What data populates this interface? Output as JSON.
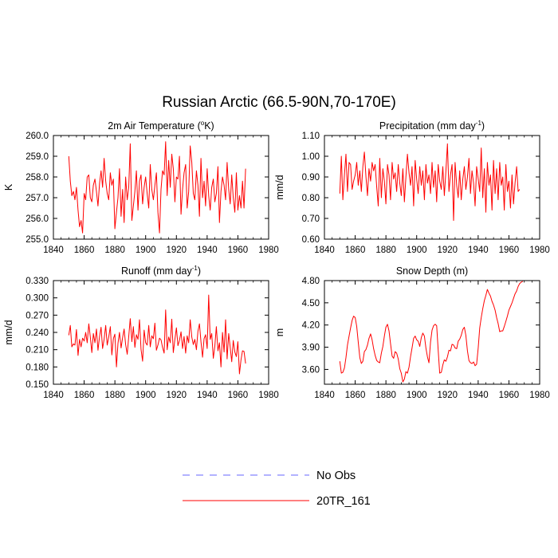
{
  "title": "Russian Arctic (66.5-90N,70-170E)",
  "legend": [
    {
      "label": "No Obs",
      "color": "#6666ff",
      "style": "dashed"
    },
    {
      "label": "20TR_161",
      "color": "#ff0000",
      "style": "solid"
    }
  ],
  "chart_data": [
    {
      "type": "line",
      "title_main": "2m Air Temperature (",
      "title_sup": "o",
      "title_end": "K)",
      "ylabel": "K",
      "xlim": [
        1840,
        1980
      ],
      "ylim": [
        255.0,
        260.0
      ],
      "xticks": [
        1840,
        1860,
        1880,
        1900,
        1920,
        1940,
        1960,
        1980
      ],
      "yticks": [
        "255.0",
        "256.0",
        "257.0",
        "258.0",
        "259.0",
        "260.0"
      ],
      "series": [
        {
          "name": "20TR_161",
          "color": "#ff0000",
          "x_start": 1850,
          "values": [
            259.0,
            257.8,
            257.1,
            257.3,
            256.9,
            257.5,
            256.4,
            255.6,
            255.9,
            255.3,
            257.2,
            256.9,
            258.0,
            258.1,
            257.0,
            256.8,
            257.6,
            257.9,
            257.3,
            256.6,
            257.7,
            258.3,
            257.5,
            258.9,
            257.8,
            257.2,
            256.9,
            258.2,
            257.6,
            257.9,
            255.5,
            256.3,
            257.0,
            258.4,
            256.1,
            257.4,
            255.8,
            258.0,
            256.9,
            257.5,
            259.6,
            255.9,
            256.6,
            257.3,
            258.3,
            256.4,
            257.8,
            258.1,
            256.7,
            257.5,
            258.0,
            257.2,
            256.5,
            258.6,
            257.4,
            256.9,
            257.6,
            258.2,
            256.3,
            255.3,
            257.4,
            258.3,
            258.1,
            259.7,
            257.1,
            258.8,
            257.5,
            259.1,
            258.4,
            256.8,
            258.0,
            257.9,
            259.0,
            256.2,
            257.4,
            258.2,
            258.6,
            256.5,
            257.3,
            259.5,
            258.7,
            257.2,
            256.9,
            258.3,
            257.6,
            256.1,
            258.9,
            257.0,
            257.8,
            256.6,
            258.4,
            257.1,
            256.4,
            257.5,
            257.9,
            256.8,
            257.2,
            258.5,
            255.8,
            257.3,
            258.0,
            257.6,
            256.9,
            258.7,
            257.4,
            256.7,
            258.1,
            257.0,
            256.3,
            258.2,
            256.4,
            257.1,
            256.5,
            257.8,
            256.5,
            258.4
          ]
        }
      ]
    },
    {
      "type": "line",
      "title_main": "Precipitation (mm day",
      "title_sup": "-1",
      "title_end": ")",
      "ylabel": "mm/d",
      "xlim": [
        1840,
        1980
      ],
      "ylim": [
        0.6,
        1.1
      ],
      "xticks": [
        1840,
        1860,
        1880,
        1900,
        1920,
        1940,
        1960,
        1980
      ],
      "yticks": [
        "0.60",
        "0.70",
        "0.80",
        "0.90",
        "1.00",
        "1.10"
      ],
      "series": [
        {
          "name": "20TR_161",
          "color": "#ff0000",
          "x_start": 1850,
          "values": [
            0.82,
            1.0,
            0.79,
            0.91,
            1.01,
            0.83,
            0.97,
            0.96,
            0.84,
            0.88,
            0.91,
            0.97,
            0.86,
            0.93,
            0.83,
            0.95,
            1.02,
            0.9,
            0.81,
            0.94,
            0.88,
            0.97,
            0.93,
            0.96,
            0.85,
            0.76,
            0.99,
            0.8,
            0.94,
            0.88,
            0.77,
            0.96,
            0.91,
            0.79,
            0.97,
            0.89,
            0.92,
            0.83,
            0.96,
            0.87,
            0.81,
            0.94,
            0.78,
            0.9,
            1.01,
            0.92,
            0.86,
            0.95,
            0.76,
            0.98,
            0.89,
            0.82,
            0.95,
            0.86,
            0.93,
            0.79,
            0.96,
            0.87,
            0.91,
            0.82,
            0.97,
            0.85,
            0.93,
            0.78,
            0.96,
            0.88,
            0.84,
            0.95,
            0.81,
            0.93,
            1.06,
            0.83,
            0.91,
            0.96,
            0.69,
            0.97,
            0.86,
            0.8,
            0.93,
            0.79,
            0.89,
            0.95,
            0.84,
            0.9,
            0.99,
            0.82,
            0.93,
            0.87,
            0.76,
            0.95,
            0.89,
            0.83,
            1.04,
            0.8,
            0.94,
            0.73,
            0.97,
            0.86,
            0.91,
            0.74,
            0.98,
            0.82,
            0.94,
            0.79,
            0.97,
            0.86,
            0.9,
            0.74,
            0.96,
            0.83,
            0.88,
            0.75,
            0.91,
            0.77,
            0.87,
            0.95,
            0.83,
            0.84
          ]
        }
      ]
    },
    {
      "type": "line",
      "title_main": "Runoff (mm day",
      "title_sup": "-1",
      "title_end": ")",
      "ylabel": "mm/d",
      "xlim": [
        1840,
        1980
      ],
      "ylim": [
        0.15,
        0.33
      ],
      "xticks": [
        1840,
        1860,
        1880,
        1900,
        1920,
        1940,
        1960,
        1980
      ],
      "yticks": [
        "0.150",
        "0.180",
        "0.210",
        "0.240",
        "0.270",
        "0.300",
        "0.330"
      ],
      "series": [
        {
          "name": "20TR_161",
          "color": "#ff0000",
          "x_start": 1850,
          "values": [
            0.235,
            0.252,
            0.215,
            0.22,
            0.218,
            0.245,
            0.2,
            0.228,
            0.215,
            0.23,
            0.225,
            0.24,
            0.222,
            0.255,
            0.232,
            0.205,
            0.238,
            0.222,
            0.246,
            0.209,
            0.233,
            0.249,
            0.212,
            0.228,
            0.252,
            0.218,
            0.232,
            0.25,
            0.201,
            0.229,
            0.237,
            0.18,
            0.221,
            0.24,
            0.213,
            0.231,
            0.246,
            0.219,
            0.202,
            0.233,
            0.264,
            0.224,
            0.25,
            0.214,
            0.236,
            0.228,
            0.262,
            0.211,
            0.19,
            0.244,
            0.222,
            0.218,
            0.252,
            0.215,
            0.234,
            0.229,
            0.256,
            0.209,
            0.218,
            0.23,
            0.227,
            0.214,
            0.204,
            0.279,
            0.21,
            0.232,
            0.222,
            0.263,
            0.205,
            0.228,
            0.248,
            0.217,
            0.226,
            0.241,
            0.212,
            0.233,
            0.204,
            0.234,
            0.222,
            0.262,
            0.232,
            0.219,
            0.228,
            0.21,
            0.242,
            0.255,
            0.224,
            0.197,
            0.229,
            0.236,
            0.212,
            0.305,
            0.228,
            0.238,
            0.195,
            0.216,
            0.25,
            0.208,
            0.222,
            0.18,
            0.24,
            0.206,
            0.262,
            0.194,
            0.238,
            0.214,
            0.189,
            0.226,
            0.206,
            0.198,
            0.224,
            0.168,
            0.192,
            0.208,
            0.207,
            0.186
          ]
        }
      ]
    },
    {
      "type": "line",
      "title_main": "Snow Depth (m)",
      "title_sup": "",
      "title_end": "",
      "ylabel": "m",
      "xlim": [
        1840,
        1980
      ],
      "ylim": [
        3.4,
        4.8
      ],
      "xticks": [
        1840,
        1860,
        1880,
        1900,
        1920,
        1940,
        1960,
        1980
      ],
      "yticks": [
        "3.60",
        "3.90",
        "4.20",
        "4.50",
        "4.80"
      ],
      "series": [
        {
          "name": "20TR_161",
          "color": "#ff0000",
          "x_start": 1850,
          "values": [
            3.71,
            3.55,
            3.56,
            3.62,
            3.76,
            3.93,
            4.05,
            4.16,
            4.26,
            4.32,
            4.3,
            4.18,
            3.97,
            3.76,
            3.68,
            3.71,
            3.84,
            3.87,
            3.93,
            4.02,
            4.08,
            4.0,
            3.88,
            3.79,
            3.72,
            3.7,
            3.69,
            3.82,
            3.91,
            4.05,
            4.17,
            4.21,
            4.12,
            3.95,
            3.78,
            3.75,
            3.84,
            3.82,
            3.74,
            3.61,
            3.55,
            3.43,
            3.47,
            3.57,
            3.55,
            3.63,
            3.77,
            3.89,
            4.02,
            4.05,
            4.0,
            3.98,
            3.91,
            4.03,
            4.09,
            4.05,
            3.89,
            3.77,
            3.69,
            3.97,
            4.13,
            4.19,
            4.21,
            4.19,
            3.86,
            3.55,
            3.56,
            3.66,
            3.73,
            3.71,
            3.77,
            3.86,
            3.85,
            3.94,
            3.93,
            3.89,
            3.88,
            3.98,
            4.01,
            4.06,
            4.14,
            4.17,
            4.06,
            3.85,
            3.72,
            3.69,
            3.68,
            3.7,
            3.65,
            3.67,
            3.89,
            4.16,
            4.3,
            4.42,
            4.53,
            4.6,
            4.68,
            4.63,
            4.59,
            4.52,
            4.47,
            4.4,
            4.3,
            4.22,
            4.11,
            4.12,
            4.12,
            4.18,
            4.25,
            4.32,
            4.4,
            4.45,
            4.5,
            4.56,
            4.62,
            4.66,
            4.72,
            4.76,
            4.78,
            4.79
          ]
        }
      ]
    }
  ]
}
